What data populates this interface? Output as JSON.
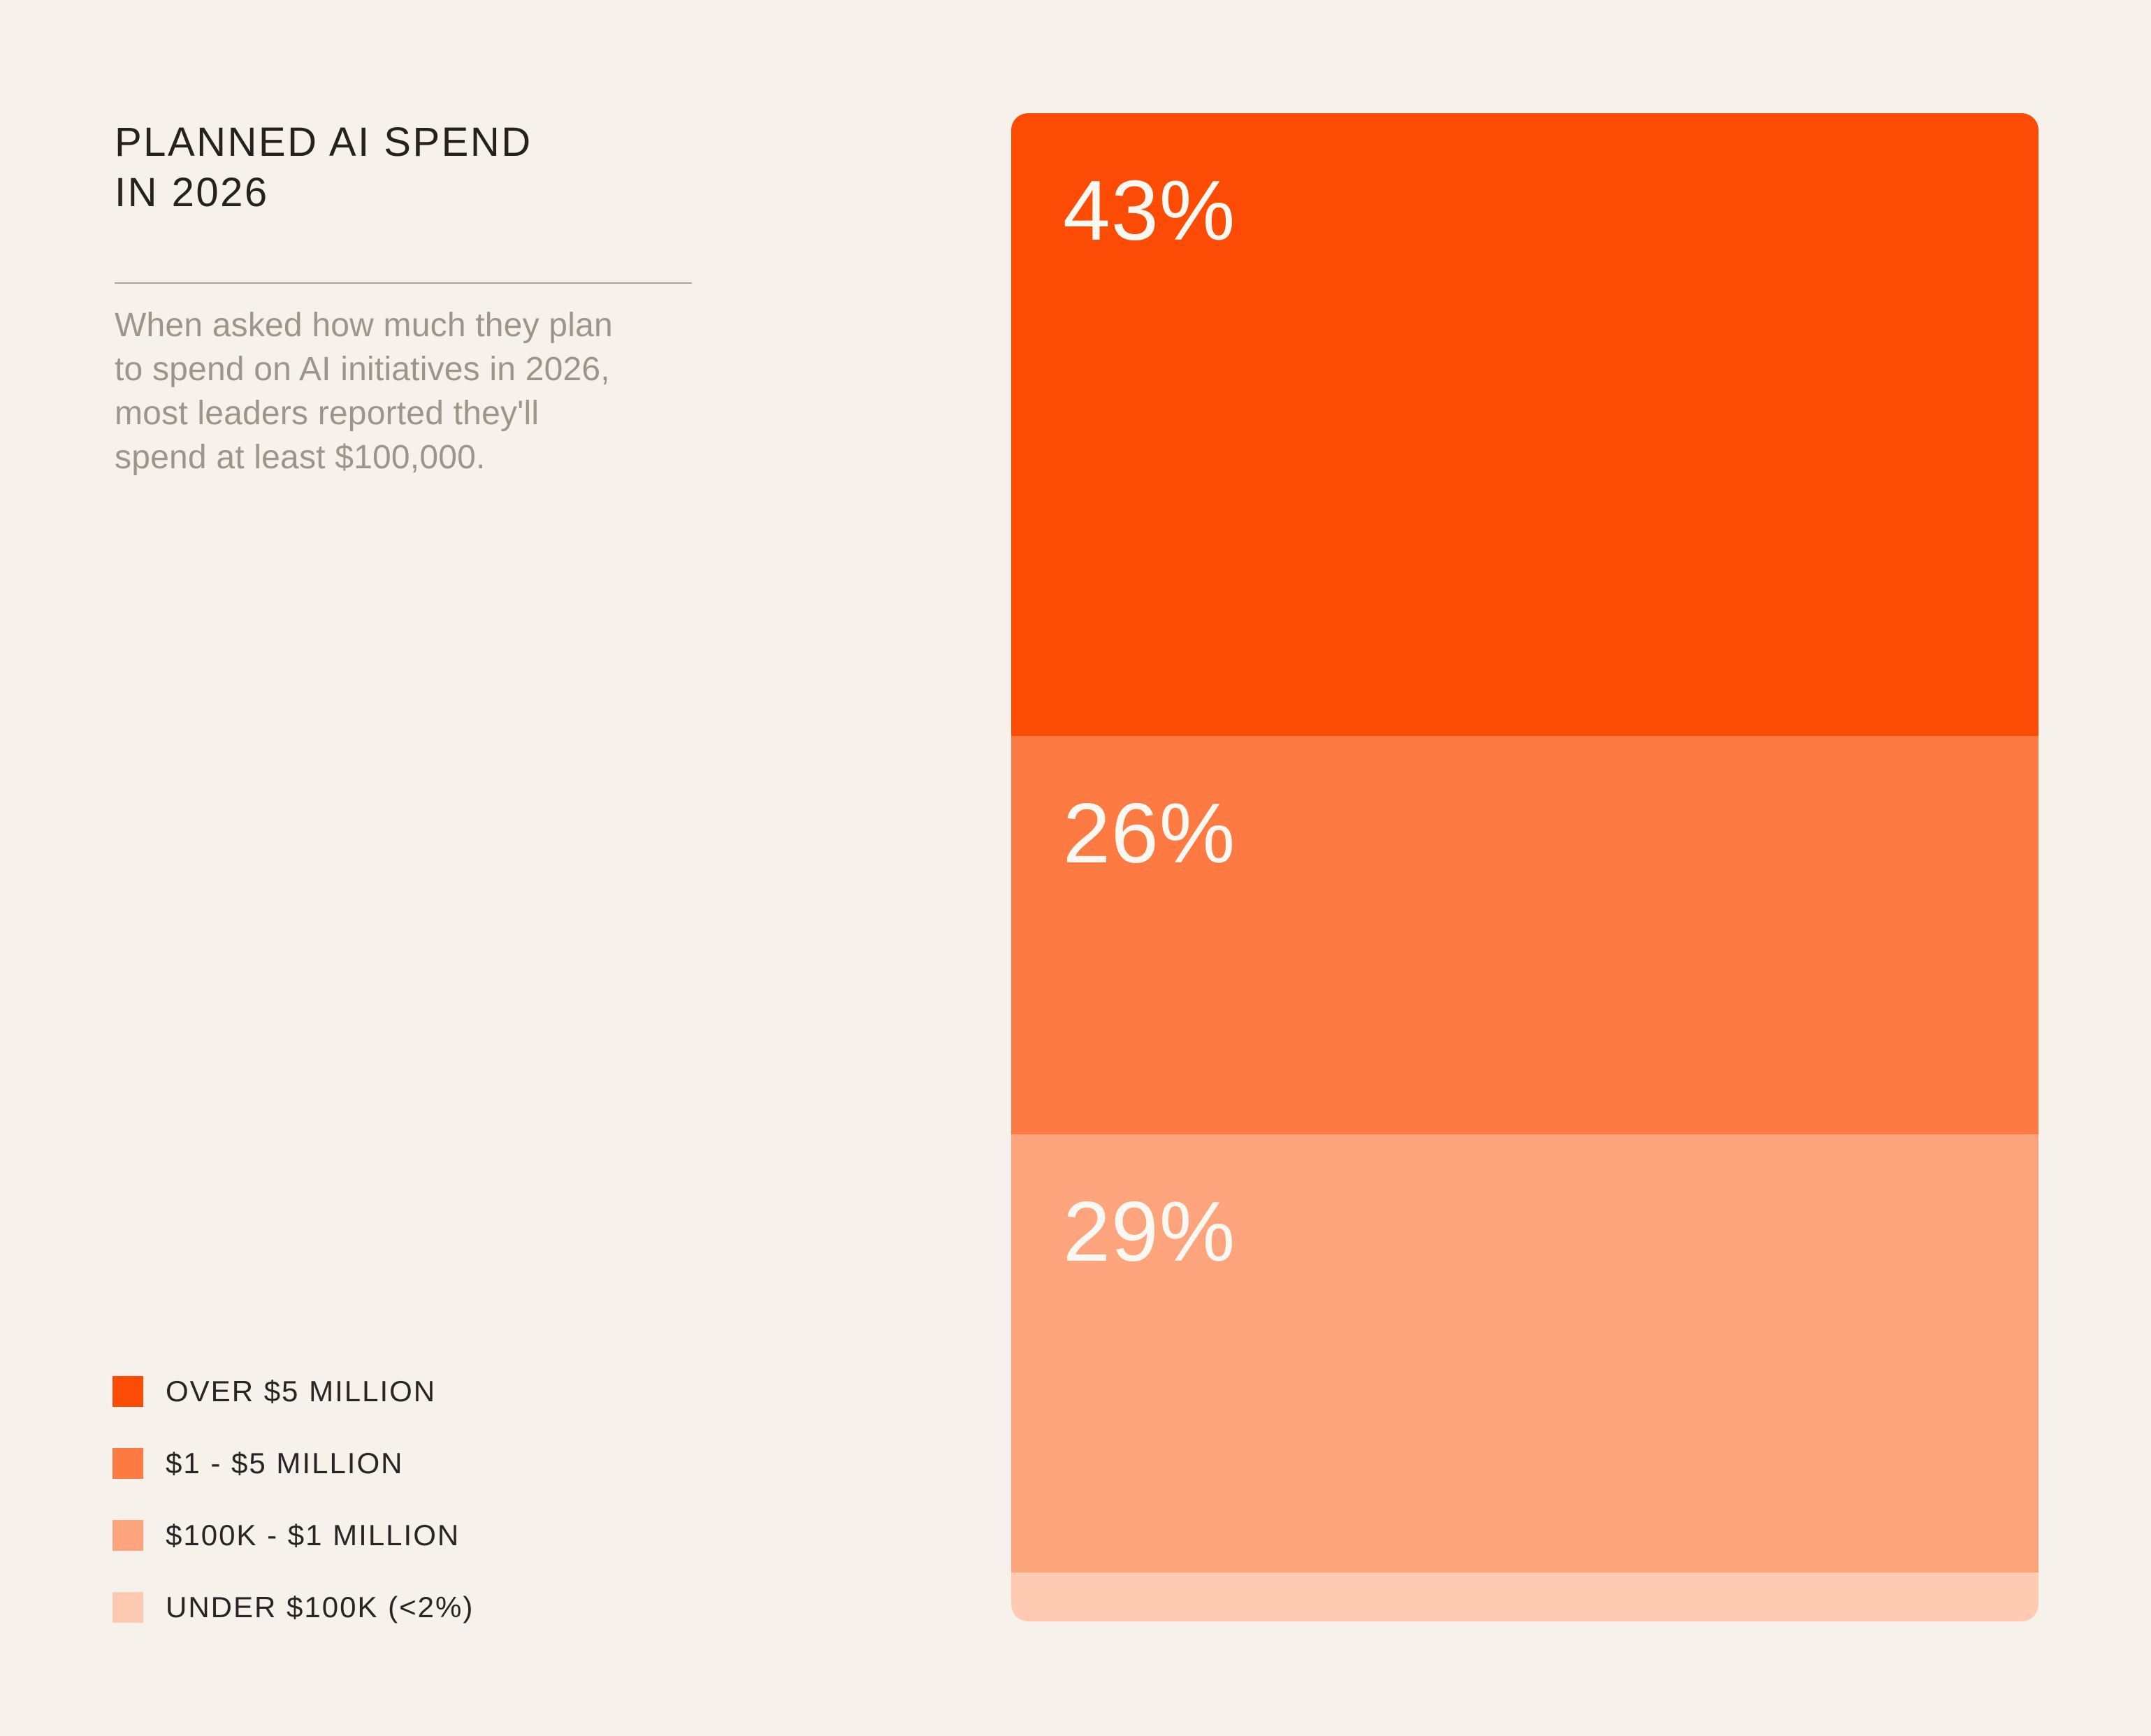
{
  "page": {
    "background": "#F6F2EB"
  },
  "header": {
    "title_line1": "PLANNED AI SPEND",
    "title_line2": "IN 2026"
  },
  "description": {
    "lines": [
      "When asked how much they plan",
      "to spend on AI initiatives in 2026,",
      "most leaders reported they'll",
      "spend at least $100,000."
    ]
  },
  "legend": {
    "items": [
      {
        "label": "OVER $5 MILLION",
        "color": "#FB4B05"
      },
      {
        "label": "$1 - $5 MILLION",
        "color": "#FD7B43"
      },
      {
        "label": "$100K - $1 MILLION",
        "color": "#FDA47D"
      },
      {
        "label": "UNDER $100K (<2%)",
        "color": "#FECBB2"
      }
    ]
  },
  "chart_data": {
    "type": "bar",
    "orientation": "vertical-stacked",
    "title": "PLANNED AI SPEND IN 2026",
    "categories": [
      "Over $5 million",
      "$1 - $5 million",
      "$100K - $1 million",
      "Under $100K"
    ],
    "values": [
      43,
      26,
      29,
      2
    ],
    "unit": "%",
    "legend_position": "bottom-left",
    "grid": false,
    "segments": [
      {
        "category": "Over $5 million",
        "value": 43,
        "label": "43%",
        "color": "#FB4B05",
        "text_color": "#FBF8F2"
      },
      {
        "category": "$1 - $5 million",
        "value": 26,
        "label": "26%",
        "color": "#FD7B43",
        "text_color": "#FBF8F2"
      },
      {
        "category": "$100K - $1 million",
        "value": 29,
        "label": "29%",
        "color": "#FDA47D",
        "text_color": "#FBF8F2"
      },
      {
        "category": "Under $100K",
        "value": 2,
        "label": "<2%",
        "color": "#FECBB2",
        "text_color": "#FBF8F2",
        "label_hidden": true
      }
    ]
  }
}
